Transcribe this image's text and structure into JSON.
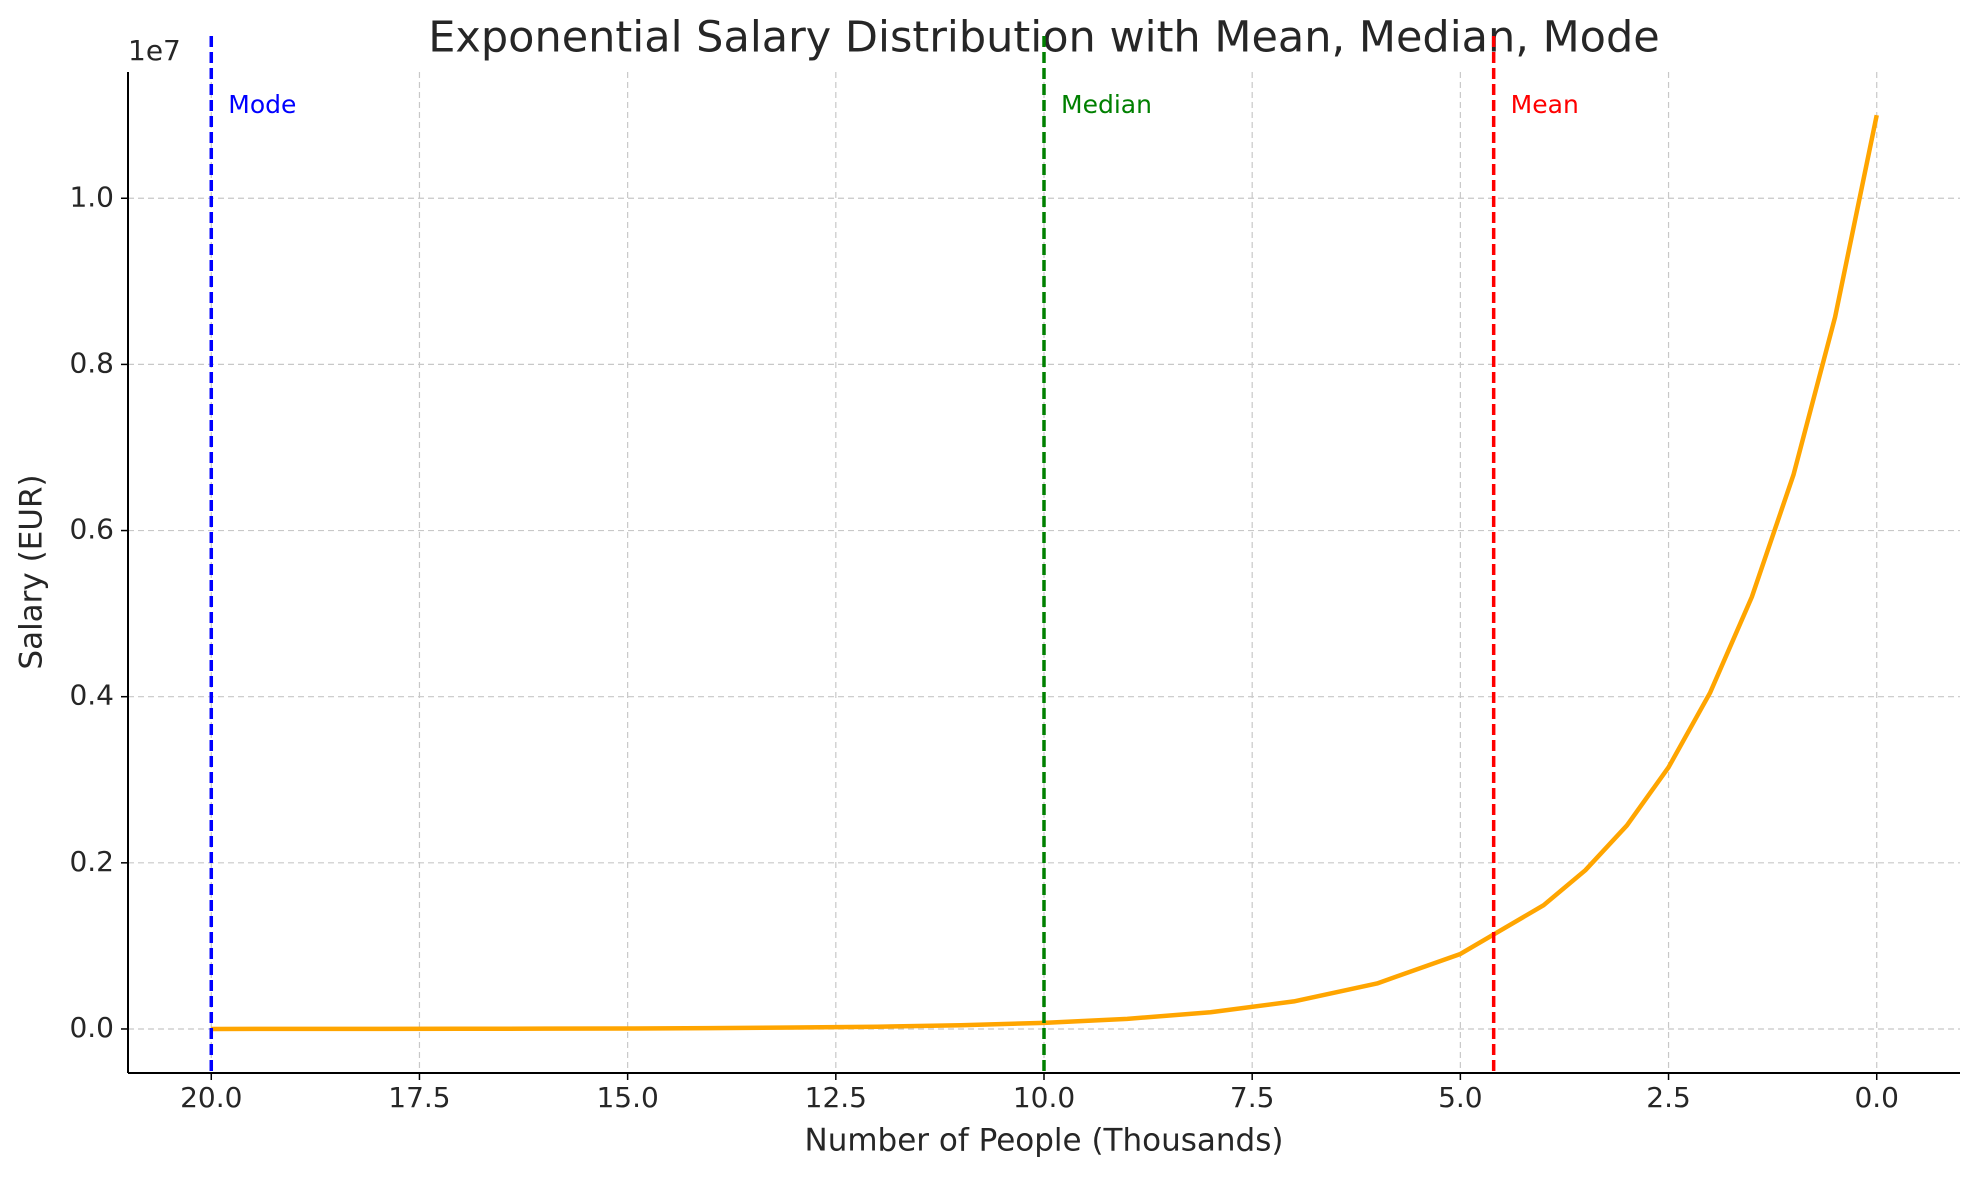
{
  "chart_data": {
    "type": "line",
    "title": "Exponential Salary Distribution with Mean, Median, Mode",
    "xlabel": "Number of People (Thousands)",
    "ylabel": "Salary (EUR)",
    "y_offset_label": "1e7",
    "series": [
      {
        "name": "Salary",
        "color": "#ffa500",
        "x": [
          0,
          0.5,
          1,
          1.5,
          2,
          2.5,
          3,
          3.5,
          4,
          5,
          6,
          7,
          8,
          9,
          10,
          11,
          12,
          13,
          14,
          15,
          16,
          17,
          18,
          19,
          20
        ],
        "values": [
          1.1,
          0.857,
          0.667,
          0.52,
          0.405,
          0.315,
          0.245,
          0.191,
          0.149,
          0.0903,
          0.0548,
          0.0332,
          0.0201,
          0.0122,
          0.0074,
          0.0045,
          0.0027,
          0.0017,
          0.001,
          0.0006,
          0.0004,
          0.0002,
          0.0001,
          0.0001,
          0
        ]
      }
    ],
    "vlines": [
      {
        "name": "Mode",
        "x": 20,
        "color": "#0000ff"
      },
      {
        "name": "Median",
        "x": 10,
        "color": "#008000"
      },
      {
        "name": "Mean",
        "x": 4.6,
        "color": "#ff0000"
      }
    ],
    "xlim": [
      21,
      -1
    ],
    "xticks": [
      {
        "value": 20,
        "label": "20.0"
      },
      17.5,
      {
        "value": 15,
        "label": "15.0"
      },
      12.5,
      {
        "value": 10,
        "label": "10.0"
      },
      7.5,
      {
        "value": 5,
        "label": "5.0"
      },
      2.5,
      {
        "value": 0,
        "label": "0.0"
      }
    ],
    "ylim": [
      -0.053,
      1.152
    ],
    "yticks": [
      {
        "value": 0,
        "label": "0.0"
      },
      0.2,
      0.4,
      0.6,
      0.8,
      {
        "value": 1,
        "label": "1.0"
      }
    ],
    "grid": true
  }
}
